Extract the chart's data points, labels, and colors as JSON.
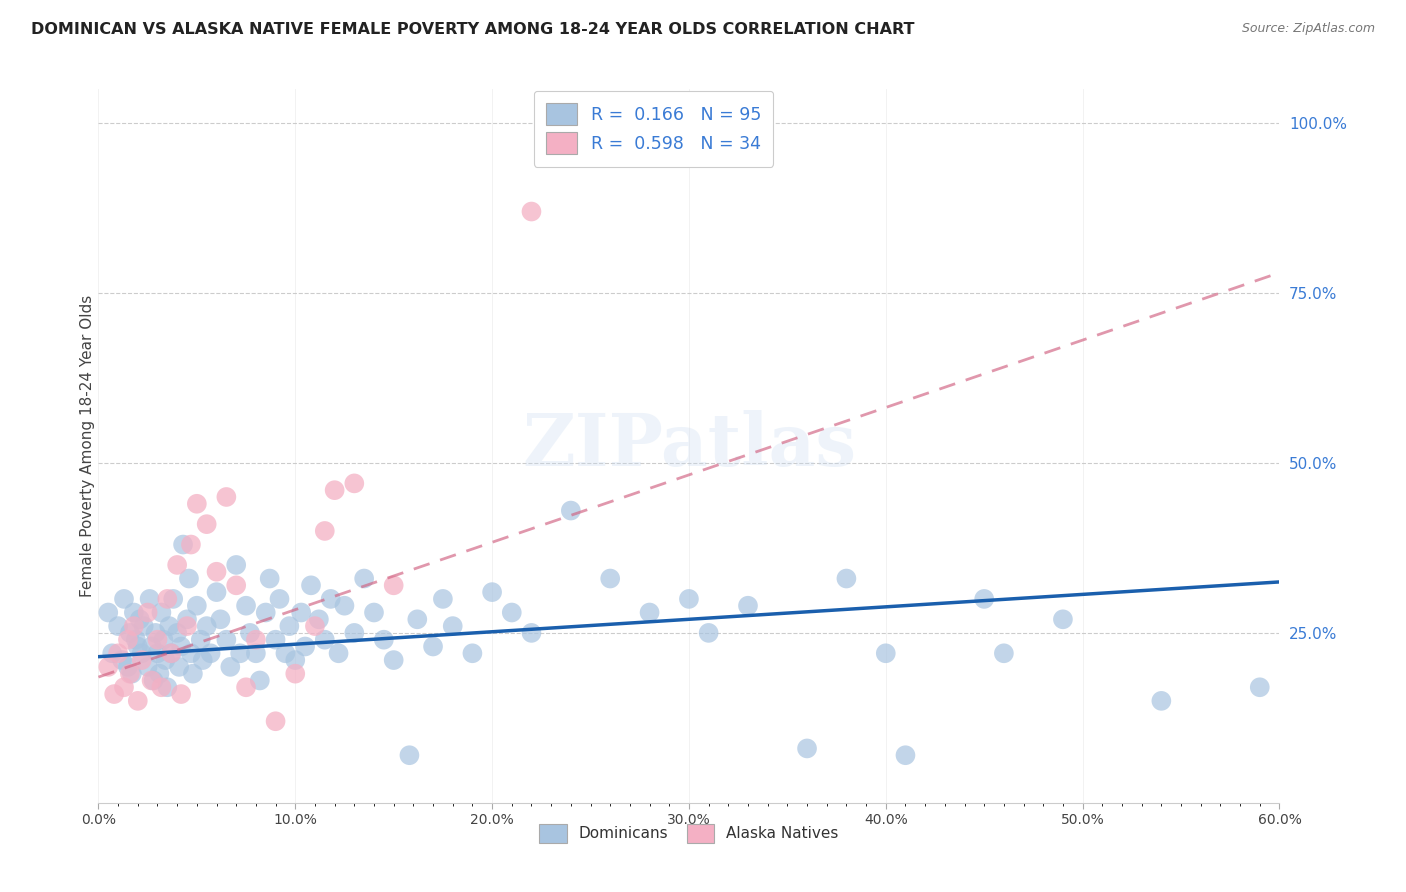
{
  "title": "DOMINICAN VS ALASKA NATIVE FEMALE POVERTY AMONG 18-24 YEAR OLDS CORRELATION CHART",
  "source": "Source: ZipAtlas.com",
  "ylabel": "Female Poverty Among 18-24 Year Olds",
  "xlim": [
    0.0,
    0.6
  ],
  "ylim": [
    0.0,
    1.05
  ],
  "xtick_labels": [
    "0.0%",
    "",
    "",
    "",
    "",
    "",
    "",
    "",
    "",
    "",
    "10.0%",
    "",
    "",
    "",
    "",
    "",
    "",
    "",
    "",
    "",
    "20.0%",
    "",
    "",
    "",
    "",
    "",
    "",
    "",
    "",
    "",
    "30.0%",
    "",
    "",
    "",
    "",
    "",
    "",
    "",
    "",
    "",
    "40.0%",
    "",
    "",
    "",
    "",
    "",
    "",
    "",
    "",
    "",
    "50.0%",
    "",
    "",
    "",
    "",
    "",
    "",
    "",
    "",
    "",
    "60.0%"
  ],
  "xtick_vals": [
    0.0,
    0.01,
    0.02,
    0.03,
    0.04,
    0.05,
    0.06,
    0.07,
    0.08,
    0.09,
    0.1,
    0.11,
    0.12,
    0.13,
    0.14,
    0.15,
    0.16,
    0.17,
    0.18,
    0.19,
    0.2,
    0.21,
    0.22,
    0.23,
    0.24,
    0.25,
    0.26,
    0.27,
    0.28,
    0.29,
    0.3,
    0.31,
    0.32,
    0.33,
    0.34,
    0.35,
    0.36,
    0.37,
    0.38,
    0.39,
    0.4,
    0.41,
    0.42,
    0.43,
    0.44,
    0.45,
    0.46,
    0.47,
    0.48,
    0.49,
    0.5,
    0.51,
    0.52,
    0.53,
    0.54,
    0.55,
    0.56,
    0.57,
    0.58,
    0.59,
    0.6
  ],
  "ytick_labels": [
    "25.0%",
    "50.0%",
    "75.0%",
    "100.0%"
  ],
  "ytick_vals": [
    0.25,
    0.5,
    0.75,
    1.0
  ],
  "dominicans_color": "#a8c4e0",
  "alaska_color": "#f4b0c4",
  "trend_dominicans_color": "#1a5fad",
  "trend_alaska_color": "#d06080",
  "R_dominicans": 0.166,
  "N_dominicans": 95,
  "R_alaska": 0.598,
  "N_alaska": 34,
  "watermark": "ZIPatlas",
  "background_color": "#ffffff",
  "trend_dom_x0": 0.0,
  "trend_dom_y0": 0.215,
  "trend_dom_x1": 0.6,
  "trend_dom_y1": 0.325,
  "trend_ak_x0": 0.0,
  "trend_ak_y0": 0.185,
  "trend_ak_x1": 0.6,
  "trend_ak_y1": 0.78,
  "dom_points": [
    [
      0.005,
      0.28
    ],
    [
      0.007,
      0.22
    ],
    [
      0.01,
      0.26
    ],
    [
      0.012,
      0.21
    ],
    [
      0.013,
      0.3
    ],
    [
      0.015,
      0.2
    ],
    [
      0.016,
      0.25
    ],
    [
      0.017,
      0.19
    ],
    [
      0.018,
      0.28
    ],
    [
      0.019,
      0.24
    ],
    [
      0.02,
      0.23
    ],
    [
      0.021,
      0.27
    ],
    [
      0.022,
      0.22
    ],
    [
      0.023,
      0.26
    ],
    [
      0.025,
      0.2
    ],
    [
      0.026,
      0.3
    ],
    [
      0.027,
      0.23
    ],
    [
      0.028,
      0.18
    ],
    [
      0.029,
      0.25
    ],
    [
      0.03,
      0.22
    ],
    [
      0.031,
      0.19
    ],
    [
      0.032,
      0.28
    ],
    [
      0.033,
      0.24
    ],
    [
      0.034,
      0.21
    ],
    [
      0.035,
      0.17
    ],
    [
      0.036,
      0.26
    ],
    [
      0.037,
      0.22
    ],
    [
      0.038,
      0.3
    ],
    [
      0.04,
      0.25
    ],
    [
      0.041,
      0.2
    ],
    [
      0.042,
      0.23
    ],
    [
      0.043,
      0.38
    ],
    [
      0.045,
      0.27
    ],
    [
      0.046,
      0.33
    ],
    [
      0.047,
      0.22
    ],
    [
      0.048,
      0.19
    ],
    [
      0.05,
      0.29
    ],
    [
      0.052,
      0.24
    ],
    [
      0.053,
      0.21
    ],
    [
      0.055,
      0.26
    ],
    [
      0.057,
      0.22
    ],
    [
      0.06,
      0.31
    ],
    [
      0.062,
      0.27
    ],
    [
      0.065,
      0.24
    ],
    [
      0.067,
      0.2
    ],
    [
      0.07,
      0.35
    ],
    [
      0.072,
      0.22
    ],
    [
      0.075,
      0.29
    ],
    [
      0.077,
      0.25
    ],
    [
      0.08,
      0.22
    ],
    [
      0.082,
      0.18
    ],
    [
      0.085,
      0.28
    ],
    [
      0.087,
      0.33
    ],
    [
      0.09,
      0.24
    ],
    [
      0.092,
      0.3
    ],
    [
      0.095,
      0.22
    ],
    [
      0.097,
      0.26
    ],
    [
      0.1,
      0.21
    ],
    [
      0.103,
      0.28
    ],
    [
      0.105,
      0.23
    ],
    [
      0.108,
      0.32
    ],
    [
      0.112,
      0.27
    ],
    [
      0.115,
      0.24
    ],
    [
      0.118,
      0.3
    ],
    [
      0.122,
      0.22
    ],
    [
      0.125,
      0.29
    ],
    [
      0.13,
      0.25
    ],
    [
      0.135,
      0.33
    ],
    [
      0.14,
      0.28
    ],
    [
      0.145,
      0.24
    ],
    [
      0.15,
      0.21
    ],
    [
      0.158,
      0.07
    ],
    [
      0.162,
      0.27
    ],
    [
      0.17,
      0.23
    ],
    [
      0.175,
      0.3
    ],
    [
      0.18,
      0.26
    ],
    [
      0.19,
      0.22
    ],
    [
      0.2,
      0.31
    ],
    [
      0.21,
      0.28
    ],
    [
      0.22,
      0.25
    ],
    [
      0.24,
      0.43
    ],
    [
      0.26,
      0.33
    ],
    [
      0.28,
      0.28
    ],
    [
      0.3,
      0.3
    ],
    [
      0.31,
      0.25
    ],
    [
      0.33,
      0.29
    ],
    [
      0.36,
      0.08
    ],
    [
      0.38,
      0.33
    ],
    [
      0.4,
      0.22
    ],
    [
      0.41,
      0.07
    ],
    [
      0.45,
      0.3
    ],
    [
      0.46,
      0.22
    ],
    [
      0.49,
      0.27
    ],
    [
      0.54,
      0.15
    ],
    [
      0.59,
      0.17
    ]
  ],
  "ak_points": [
    [
      0.005,
      0.2
    ],
    [
      0.008,
      0.16
    ],
    [
      0.01,
      0.22
    ],
    [
      0.013,
      0.17
    ],
    [
      0.015,
      0.24
    ],
    [
      0.016,
      0.19
    ],
    [
      0.018,
      0.26
    ],
    [
      0.02,
      0.15
    ],
    [
      0.022,
      0.21
    ],
    [
      0.025,
      0.28
    ],
    [
      0.027,
      0.18
    ],
    [
      0.03,
      0.24
    ],
    [
      0.032,
      0.17
    ],
    [
      0.035,
      0.3
    ],
    [
      0.037,
      0.22
    ],
    [
      0.04,
      0.35
    ],
    [
      0.042,
      0.16
    ],
    [
      0.045,
      0.26
    ],
    [
      0.047,
      0.38
    ],
    [
      0.05,
      0.44
    ],
    [
      0.055,
      0.41
    ],
    [
      0.06,
      0.34
    ],
    [
      0.065,
      0.45
    ],
    [
      0.07,
      0.32
    ],
    [
      0.075,
      0.17
    ],
    [
      0.08,
      0.24
    ],
    [
      0.09,
      0.12
    ],
    [
      0.1,
      0.19
    ],
    [
      0.11,
      0.26
    ],
    [
      0.115,
      0.4
    ],
    [
      0.12,
      0.46
    ],
    [
      0.13,
      0.47
    ],
    [
      0.15,
      0.32
    ],
    [
      0.22,
      0.87
    ]
  ]
}
